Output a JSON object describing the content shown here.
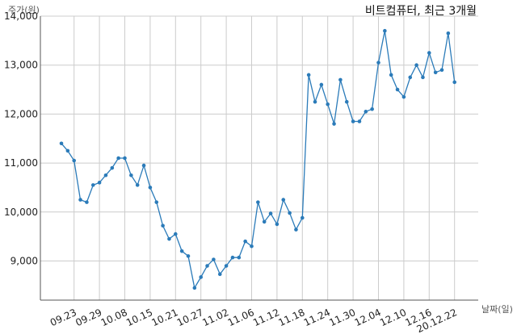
{
  "chart_data": {
    "type": "line",
    "title": "비트컴퓨터, 최근 3개월",
    "xlabel": "날짜(일)",
    "ylabel": "주가(원)",
    "ylim": [
      8200,
      14000
    ],
    "yticks": [
      9000,
      10000,
      11000,
      12000,
      13000,
      14000
    ],
    "ytick_labels": [
      "9,000",
      "10,000",
      "11,000",
      "12,000",
      "13,000",
      "14,000"
    ],
    "xtick_labels": [
      {
        "label": "09.23",
        "index": 2
      },
      {
        "label": "09.29",
        "index": 6
      },
      {
        "label": "10.08",
        "index": 10
      },
      {
        "label": "10.15",
        "index": 14
      },
      {
        "label": "10.21",
        "index": 18
      },
      {
        "label": "10.27",
        "index": 22
      },
      {
        "label": "11.02",
        "index": 26
      },
      {
        "label": "11.06",
        "index": 30
      },
      {
        "label": "11.12",
        "index": 34
      },
      {
        "label": "11.18",
        "index": 38
      },
      {
        "label": "11.24",
        "index": 42
      },
      {
        "label": "11.30",
        "index": 46
      },
      {
        "label": "12.04",
        "index": 50
      },
      {
        "label": "12.10",
        "index": 54
      },
      {
        "label": "12.16",
        "index": 58
      },
      {
        "label": "20.12.22",
        "index": 62
      }
    ],
    "grid": true,
    "color": "#2b7bb9",
    "series": [
      {
        "values": [
          11400,
          11250,
          11050,
          10250,
          10200,
          10550,
          10600,
          10750,
          10900,
          11100,
          11100,
          10750,
          10550,
          10950,
          10500,
          10200,
          9720,
          9450,
          9550,
          9200,
          9100,
          8450,
          8670,
          8900,
          9030,
          8730,
          8900,
          9070,
          9070,
          9400,
          9300,
          10200,
          9800,
          9970,
          9750,
          10250,
          9980,
          9640,
          9880,
          12800,
          12250,
          12600,
          12200,
          11800,
          12700,
          12250,
          11850,
          11850,
          12050,
          12100,
          13050,
          13700,
          12800,
          12500,
          12350,
          12750,
          13000,
          12750,
          13250,
          12850,
          12900,
          13650,
          12650
        ]
      }
    ]
  }
}
